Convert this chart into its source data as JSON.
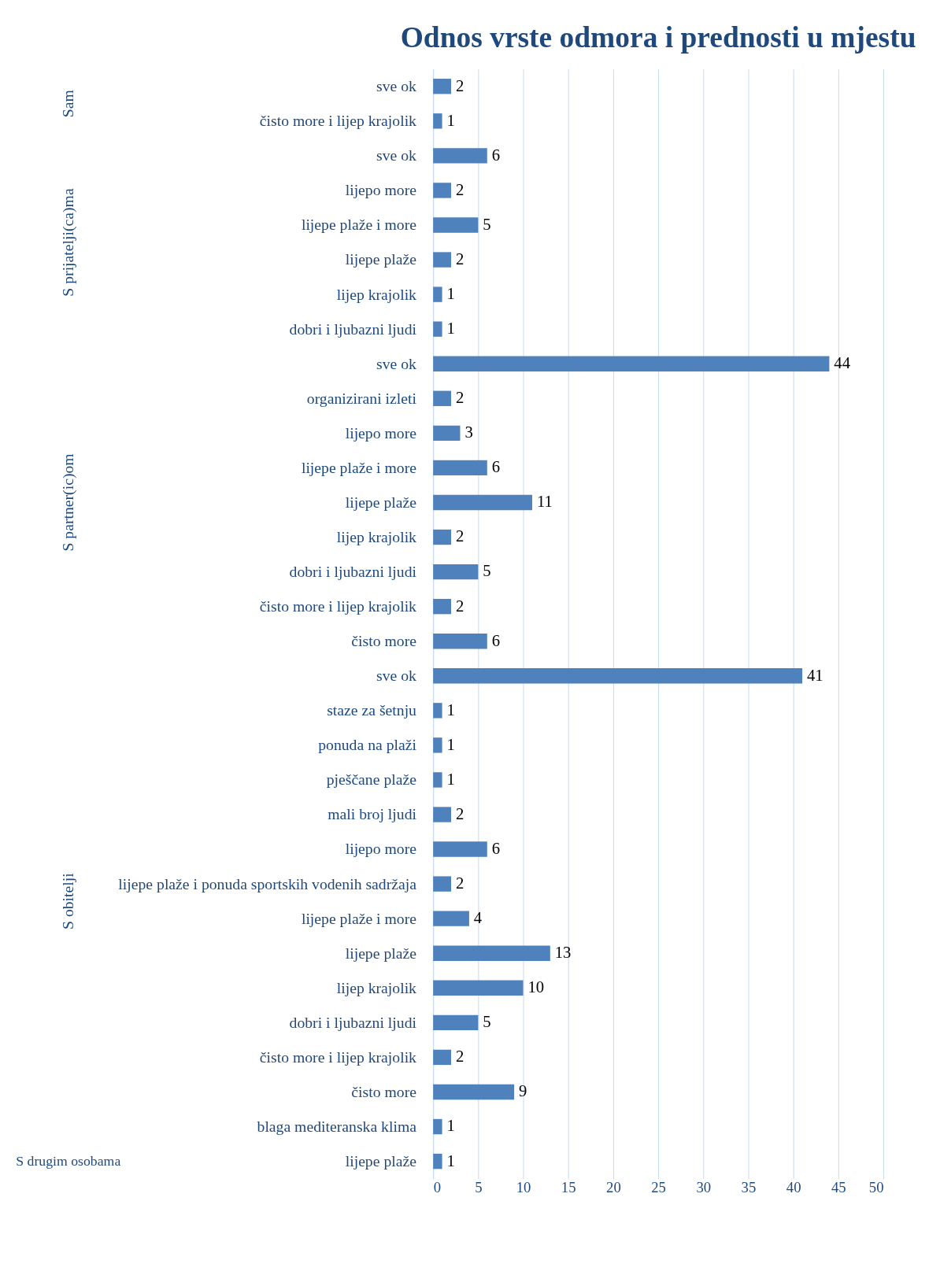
{
  "chart_data": {
    "type": "bar",
    "orientation": "horizontal",
    "title": "Odnos vrste odmora i prednosti u mjestu",
    "categories": [
      "sve ok",
      "čisto more i lijep krajolik",
      "sve ok",
      "lijepo more",
      "lijepe plaže i more",
      "lijepe plaže",
      "lijep krajolik",
      "dobri i ljubazni ljudi",
      "sve ok",
      "organizirani izleti",
      "lijepo more",
      "lijepe plaže i more",
      "lijepe plaže",
      "lijep krajolik",
      "dobri i ljubazni ljudi",
      "čisto more i lijep krajolik",
      "čisto more",
      "sve ok",
      "staze za šetnju",
      "ponuda na plaži",
      "pješčane plaže",
      "mali broj ljudi",
      "lijepo more",
      "lijepe plaže i ponuda sportskih vodenih sadržaja",
      "lijepe plaže i more",
      "lijepe plaže",
      "lijep krajolik",
      "dobri i ljubazni ljudi",
      "čisto more i lijep krajolik",
      "čisto more",
      "blaga mediteranska klima",
      "lijepe plaže"
    ],
    "values": [
      2,
      1,
      6,
      2,
      5,
      2,
      1,
      1,
      44,
      2,
      3,
      6,
      11,
      2,
      5,
      2,
      6,
      41,
      1,
      1,
      1,
      2,
      6,
      2,
      4,
      13,
      10,
      5,
      2,
      9,
      1,
      1
    ],
    "color": "#4f81bd",
    "annotations": [
      "Sam",
      "S prijatelji(ca)ma",
      "S partner(ic)om",
      "S obitelji",
      "S drugim osobama"
    ],
    "xlim": [
      0,
      50
    ],
    "xticks": [
      0,
      5,
      10,
      15,
      20,
      25,
      30,
      35,
      40,
      45,
      50
    ],
    "data_labels": true,
    "grid": "x"
  }
}
